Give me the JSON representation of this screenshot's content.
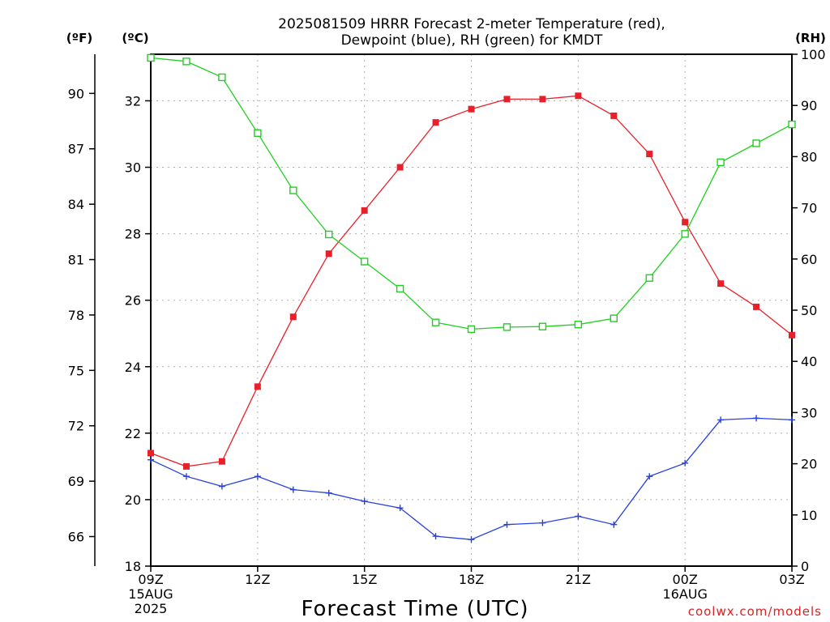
{
  "chart_data": {
    "type": "line",
    "title": "2025081509 HRRR Forecast 2-meter Temperature (red),",
    "subtitle": "Dewpoint (blue), RH (green) for KMDT",
    "xlabel": "Forecast Time (UTC)",
    "credit": "coolwx.com/models",
    "unit_labels": {
      "fahrenheit": "(ºF)",
      "celsius": "(ºC)",
      "rh": "(RH)"
    },
    "x_hours": [
      9,
      10,
      11,
      12,
      13,
      14,
      15,
      16,
      17,
      18,
      19,
      20,
      21,
      22,
      23,
      24,
      25,
      26,
      27
    ],
    "x_ticks": [
      {
        "hour": 9,
        "lines": [
          "09Z",
          "15AUG",
          "2025"
        ]
      },
      {
        "hour": 12,
        "lines": [
          "12Z"
        ]
      },
      {
        "hour": 15,
        "lines": [
          "15Z"
        ]
      },
      {
        "hour": 18,
        "lines": [
          "18Z"
        ]
      },
      {
        "hour": 21,
        "lines": [
          "21Z"
        ]
      },
      {
        "hour": 24,
        "lines": [
          "00Z",
          "16AUG"
        ]
      },
      {
        "hour": 27,
        "lines": [
          "03Z"
        ]
      }
    ],
    "y_celsius": {
      "range": [
        18,
        33.4
      ],
      "ticks": [
        18,
        20,
        22,
        24,
        26,
        28,
        30,
        32
      ]
    },
    "y_fahrenheit": {
      "ticks": [
        66,
        69,
        72,
        75,
        78,
        81,
        84,
        87,
        90
      ]
    },
    "y_rh": {
      "range": [
        0,
        100
      ],
      "ticks": [
        0,
        10,
        20,
        30,
        40,
        50,
        60,
        70,
        80,
        90,
        100
      ]
    },
    "grid": true,
    "series": [
      {
        "name": "Temperature",
        "axis": "celsius",
        "color": "#e8202a",
        "marker": "filled-square",
        "values": [
          21.4,
          21.0,
          21.15,
          23.4,
          25.5,
          27.4,
          28.7,
          30.0,
          31.35,
          31.75,
          32.05,
          32.05,
          32.15,
          31.55,
          30.4,
          28.35,
          26.5,
          25.8,
          24.95
        ]
      },
      {
        "name": "Dewpoint",
        "axis": "celsius",
        "color": "#2840e0",
        "marker": "plus",
        "values": [
          21.2,
          20.7,
          20.4,
          20.7,
          20.3,
          20.2,
          19.95,
          19.75,
          18.9,
          18.8,
          19.25,
          19.3,
          19.5,
          19.25,
          20.7,
          21.1,
          22.4,
          22.45,
          22.4
        ]
      },
      {
        "name": "RH",
        "axis": "rh",
        "color": "#20d020",
        "marker": "open-square",
        "values": [
          99.3,
          98.6,
          95.5,
          84.6,
          73.4,
          64.8,
          59.5,
          54.2,
          47.6,
          46.3,
          46.7,
          46.8,
          47.2,
          48.4,
          56.3,
          64.9,
          78.9,
          82.6,
          86.3
        ]
      }
    ]
  }
}
